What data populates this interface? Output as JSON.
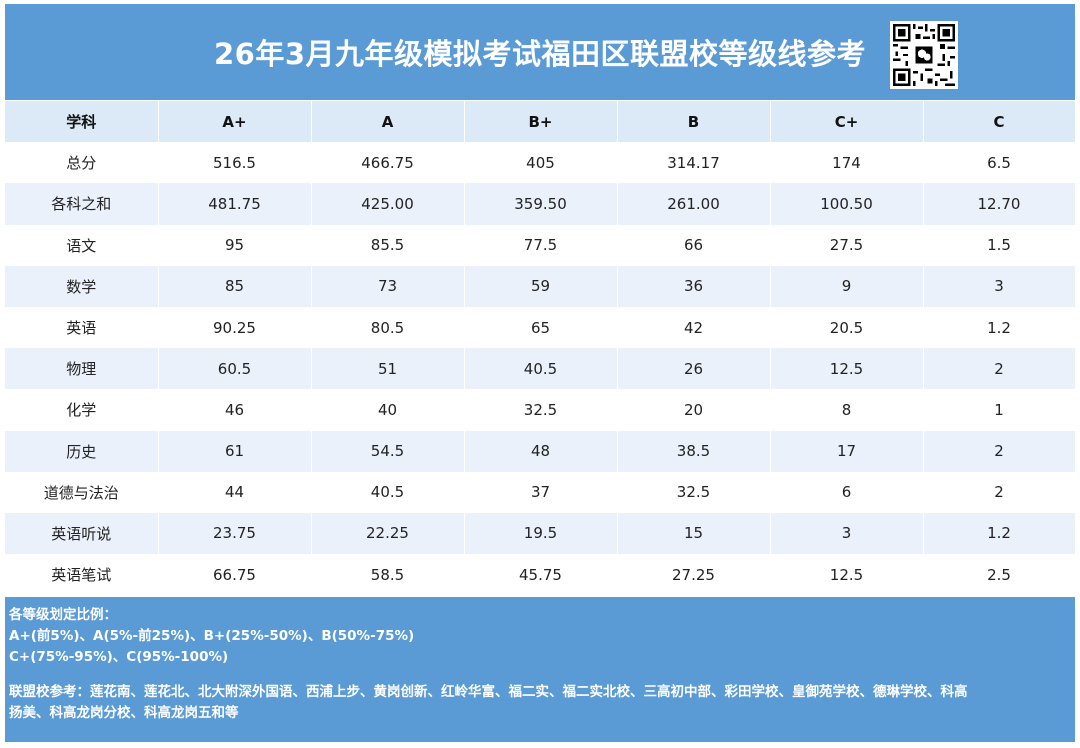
{
  "header": {
    "title": "26年3月九年级模拟考试福田区联盟校等级线参考"
  },
  "table": {
    "columns": [
      "学科",
      "A+",
      "A",
      "B+",
      "B",
      "C+",
      "C"
    ],
    "rows": [
      [
        "总分",
        "516.5",
        "466.75",
        "405",
        "314.17",
        "174",
        "6.5"
      ],
      [
        "各科之和",
        "481.75",
        "425.00",
        "359.50",
        "261.00",
        "100.50",
        "12.70"
      ],
      [
        "语文",
        "95",
        "85.5",
        "77.5",
        "66",
        "27.5",
        "1.5"
      ],
      [
        "数学",
        "85",
        "73",
        "59",
        "36",
        "9",
        "3"
      ],
      [
        "英语",
        "90.25",
        "80.5",
        "65",
        "42",
        "20.5",
        "1.2"
      ],
      [
        "物理",
        "60.5",
        "51",
        "40.5",
        "26",
        "12.5",
        "2"
      ],
      [
        "化学",
        "46",
        "40",
        "32.5",
        "20",
        "8",
        "1"
      ],
      [
        "历史",
        "61",
        "54.5",
        "48",
        "38.5",
        "17",
        "2"
      ],
      [
        "道德与法治",
        "44",
        "40.5",
        "37",
        "32.5",
        "6",
        "2"
      ],
      [
        "英语听说",
        "23.75",
        "22.25",
        "19.5",
        "15",
        "3",
        "1.2"
      ],
      [
        "英语笔试",
        "66.75",
        "58.5",
        "45.75",
        "27.25",
        "12.5",
        "2.5"
      ]
    ]
  },
  "footer": {
    "ratio_heading": "各等级划定比例：",
    "ratio_line1": "A+(前5%)、A(5%-前25%)、B+(25%-50%)、B(50%-75%)",
    "ratio_line2": "C+(75%-95%)、C(95%-100%)",
    "schools_line1": "联盟校参考：莲花南、莲花北、北大附深外国语、西浦上步、黄岗创新、红岭华富、福二实、福二实北校、三高初中部、彩田学校、皇御苑学校、德琳学校、科高",
    "schools_line2": "扬美、科高龙岗分校、科高龙岗五和等"
  },
  "colors": {
    "banner": "#5b9bd5",
    "header_row": "#dce9f6",
    "stripe": "#eaf1fa"
  },
  "icons": {
    "qr": "qr-code-icon"
  }
}
